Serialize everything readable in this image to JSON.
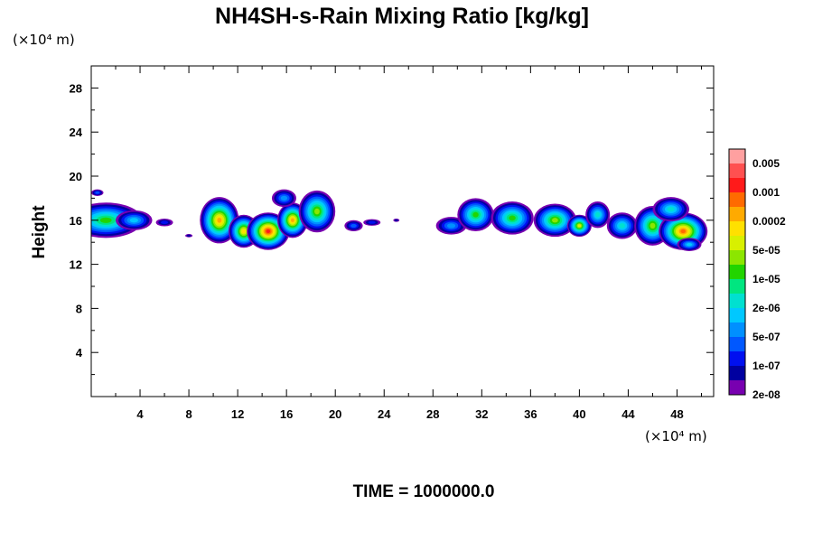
{
  "chart_data": {
    "type": "heatmap",
    "title": "NH4SH-s-Rain Mixing Ratio [kg/kg]",
    "ylabel": "Height",
    "x_unit": "(×10⁴ m)",
    "y_unit": "(×10⁴ m)",
    "footer": "TIME = 1000000.0",
    "xlim": [
      0,
      51
    ],
    "ylim": [
      0,
      30
    ],
    "x_ticks": [
      4,
      8,
      12,
      16,
      20,
      24,
      28,
      32,
      36,
      40,
      44,
      48
    ],
    "y_ticks": [
      4,
      8,
      12,
      16,
      20,
      24,
      28
    ],
    "x_tick_labels": [
      "4",
      "8",
      "12",
      "16",
      "20",
      "24",
      "28",
      "32",
      "36",
      "40",
      "44",
      "48"
    ],
    "y_tick_labels": [
      "4",
      "8",
      "12",
      "16",
      "20",
      "24",
      "28"
    ],
    "colorbar": {
      "colors": [
        "#ffa0a0",
        "#ff5050",
        "#ff1a1a",
        "#ff6a00",
        "#ffaa00",
        "#ffe000",
        "#d8f000",
        "#8ce600",
        "#22d400",
        "#00e680",
        "#00e0d0",
        "#00c8ff",
        "#0090ff",
        "#0058ff",
        "#0010f0",
        "#0000a0",
        "#7800b0"
      ],
      "labels": [
        "0.005",
        "0.001",
        "0.0002",
        "5e-05",
        "1e-05",
        "2e-06",
        "5e-07",
        "1e-07",
        "2e-08"
      ]
    },
    "clouds": [
      {
        "x": 1.2,
        "y": 16.0,
        "w": 6.0,
        "h": 3.2,
        "peak": 8
      },
      {
        "x": 3.5,
        "y": 16.0,
        "w": 3.0,
        "h": 1.8,
        "peak": 5
      },
      {
        "x": 6.0,
        "y": 15.8,
        "w": 1.4,
        "h": 0.7,
        "peak": 2
      },
      {
        "x": 8.0,
        "y": 14.6,
        "w": 0.6,
        "h": 0.3,
        "peak": 1
      },
      {
        "x": 10.5,
        "y": 16.0,
        "w": 3.2,
        "h": 4.2,
        "peak": 12
      },
      {
        "x": 12.5,
        "y": 15.0,
        "w": 2.5,
        "h": 3.0,
        "peak": 11
      },
      {
        "x": 14.5,
        "y": 15.0,
        "w": 3.5,
        "h": 3.4,
        "peak": 14
      },
      {
        "x": 16.5,
        "y": 16.0,
        "w": 2.5,
        "h": 3.2,
        "peak": 12
      },
      {
        "x": 15.8,
        "y": 18.0,
        "w": 2.0,
        "h": 1.6,
        "peak": 4
      },
      {
        "x": 18.5,
        "y": 16.8,
        "w": 3.0,
        "h": 3.8,
        "peak": 9
      },
      {
        "x": 21.5,
        "y": 15.5,
        "w": 1.5,
        "h": 1.0,
        "peak": 3
      },
      {
        "x": 23.0,
        "y": 15.8,
        "w": 1.4,
        "h": 0.6,
        "peak": 2
      },
      {
        "x": 25.0,
        "y": 16.0,
        "w": 0.5,
        "h": 0.3,
        "peak": 1
      },
      {
        "x": 29.5,
        "y": 15.5,
        "w": 2.5,
        "h": 1.6,
        "peak": 4
      },
      {
        "x": 31.5,
        "y": 16.5,
        "w": 3.0,
        "h": 3.0,
        "peak": 8
      },
      {
        "x": 34.5,
        "y": 16.2,
        "w": 3.5,
        "h": 3.0,
        "peak": 8
      },
      {
        "x": 38.0,
        "y": 16.0,
        "w": 3.5,
        "h": 3.0,
        "peak": 9
      },
      {
        "x": 40.0,
        "y": 15.5,
        "w": 2.0,
        "h": 2.0,
        "peak": 10
      },
      {
        "x": 41.5,
        "y": 16.5,
        "w": 2.0,
        "h": 2.4,
        "peak": 6
      },
      {
        "x": 43.5,
        "y": 15.5,
        "w": 2.5,
        "h": 2.4,
        "peak": 6
      },
      {
        "x": 46.0,
        "y": 15.5,
        "w": 3.0,
        "h": 3.6,
        "peak": 9
      },
      {
        "x": 48.5,
        "y": 15.0,
        "w": 4.0,
        "h": 3.4,
        "peak": 13
      },
      {
        "x": 47.5,
        "y": 17.0,
        "w": 3.0,
        "h": 2.2,
        "peak": 6
      },
      {
        "x": 49.0,
        "y": 13.8,
        "w": 2.0,
        "h": 1.2,
        "peak": 5
      },
      {
        "x": 0.5,
        "y": 18.5,
        "w": 1.0,
        "h": 0.6,
        "peak": 3
      }
    ]
  }
}
